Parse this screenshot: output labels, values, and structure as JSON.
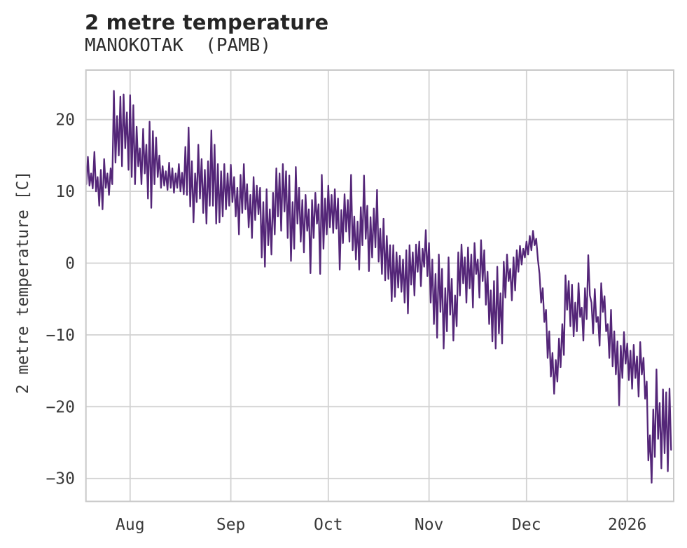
{
  "header": {
    "title": "2 metre temperature",
    "subtitle": "MANOKOTAK  (PAMB)"
  },
  "colors": {
    "line": "#542678",
    "grid": "#d2d2d2",
    "spine": "#c8c8c8",
    "title_text": "#252525",
    "tick_text": "#3a3a3a",
    "background": "#ffffff"
  },
  "chart_data": {
    "type": "line",
    "title": "2 metre temperature",
    "subtitle": "MANOKOTAK  (PAMB)",
    "xlabel": "",
    "ylabel": "2 metre temperature [C]",
    "grid": true,
    "legend": false,
    "xlim": [
      0.4,
      181.3
    ],
    "ylim": [
      -33.2,
      26.9
    ],
    "x_ticks": [
      {
        "day": 14,
        "label": "Aug"
      },
      {
        "day": 45,
        "label": "Sep"
      },
      {
        "day": 75,
        "label": "Oct"
      },
      {
        "day": 106,
        "label": "Nov"
      },
      {
        "day": 136,
        "label": "Dec"
      },
      {
        "day": 167,
        "label": "2026"
      }
    ],
    "y_ticks": [
      {
        "value": 20,
        "label": "20"
      },
      {
        "value": 10,
        "label": "10"
      },
      {
        "value": 0,
        "label": "0"
      },
      {
        "value": -10,
        "label": "−10"
      },
      {
        "value": -20,
        "label": "−20"
      },
      {
        "value": -30,
        "label": "−30"
      }
    ],
    "x0_day": 0,
    "dx_days": 0.5,
    "series": [
      {
        "name": "2 metre temperature",
        "color": "#542678",
        "temps": [
          13.5,
          11.0,
          14.8,
          10.8,
          12.5,
          10.4,
          15.5,
          10.0,
          12.0,
          8.0,
          13.0,
          7.5,
          14.5,
          10.5,
          12.5,
          9.5,
          13.2,
          11.0,
          24.0,
          14.0,
          20.5,
          15.0,
          23.2,
          13.5,
          23.5,
          16.0,
          21.0,
          13.0,
          23.4,
          12.0,
          22.0,
          11.0,
          19.0,
          13.5,
          16.0,
          11.0,
          18.7,
          12.5,
          16.5,
          9.0,
          19.7,
          7.7,
          18.4,
          11.0,
          17.5,
          12.0,
          15.0,
          10.5,
          13.5,
          10.8,
          12.8,
          10.2,
          14.0,
          10.5,
          13.2,
          9.8,
          12.5,
          10.5,
          13.8,
          10.0,
          12.6,
          9.6,
          16.2,
          9.5,
          18.9,
          7.9,
          14.2,
          5.7,
          12.5,
          8.5,
          16.5,
          9.0,
          14.5,
          7.0,
          13.0,
          5.5,
          14.2,
          8.0,
          18.5,
          8.0,
          16.5,
          5.5,
          13.8,
          5.7,
          12.8,
          6.5,
          13.8,
          7.5,
          12.5,
          8.0,
          13.7,
          8.5,
          12.0,
          6.5,
          10.5,
          4.0,
          12.3,
          7.0,
          13.8,
          7.5,
          11.0,
          5.0,
          9.5,
          3.5,
          12.0,
          6.0,
          10.8,
          6.8,
          10.5,
          0.8,
          8.5,
          -0.5,
          10.3,
          2.5,
          7.5,
          1.2,
          9.8,
          4.0,
          13.2,
          6.5,
          12.5,
          4.5,
          13.8,
          7.2,
          12.8,
          3.5,
          12.2,
          0.3,
          8.5,
          2.0,
          13.4,
          5.5,
          10.5,
          3.0,
          8.8,
          1.5,
          9.5,
          4.5,
          7.5,
          -1.4,
          8.8,
          3.5,
          9.8,
          5.5,
          8.2,
          -1.5,
          12.3,
          2.0,
          9.0,
          4.0,
          10.8,
          5.0,
          9.5,
          4.2,
          10.3,
          4.8,
          9.0,
          -0.9,
          7.4,
          2.8,
          9.6,
          4.4,
          8.8,
          3.0,
          12.3,
          1.8,
          6.5,
          0.5,
          5.8,
          -0.9,
          7.8,
          2.5,
          12.2,
          3.4,
          8.0,
          -1.1,
          6.4,
          0.8,
          7.6,
          2.2,
          10.2,
          0.2,
          4.8,
          -1.5,
          6.2,
          -2.4,
          3.8,
          -2.2,
          2.5,
          -5.3,
          2.5,
          -4.7,
          1.5,
          -3.4,
          1.0,
          -4.0,
          0.5,
          -5.5,
          1.8,
          -7.0,
          2.5,
          -3.0,
          1.5,
          -4.5,
          2.6,
          -1.2,
          3.0,
          -3.2,
          2.0,
          -0.5,
          4.6,
          -1.8,
          2.8,
          -5.5,
          0.5,
          -8.5,
          -1.5,
          -10.4,
          1.2,
          -6.8,
          -0.8,
          -11.9,
          -3.5,
          -9.5,
          0.8,
          -7.2,
          -2.2,
          -10.8,
          -4.5,
          -8.8,
          1.5,
          -4.5,
          2.6,
          -2.8,
          0.8,
          -5.5,
          2.2,
          -3.5,
          1.2,
          -6.2,
          2.8,
          -1.5,
          0.5,
          -4.8,
          3.2,
          -2.5,
          1.8,
          -5.8,
          -1.2,
          -8.5,
          -3.8,
          -10.9,
          -2.5,
          -11.9,
          -0.5,
          -9.8,
          -4.2,
          -11.2,
          0.2,
          -4.8,
          1.2,
          -2.5,
          -0.8,
          -5.2,
          0.8,
          -3.8,
          1.8,
          -1.2,
          2.4,
          -0.2,
          2.0,
          0.8,
          3.0,
          1.2,
          3.8,
          1.8,
          4.5,
          2.5,
          3.4,
          0.5,
          -1.5,
          -5.5,
          -3.5,
          -8.2,
          -6.5,
          -13.2,
          -9.5,
          -15.8,
          -12.5,
          -18.2,
          -13.5,
          -16.5,
          -10.5,
          -14.5,
          -8.5,
          -12.8,
          -1.7,
          -6.5,
          -2.5,
          -8.8,
          -3.0,
          -10.2,
          -5.5,
          -9.5,
          -2.8,
          -7.5,
          -6.2,
          -10.8,
          -3.5,
          -7.8,
          1.1,
          -4.5,
          -5.5,
          -9.8,
          -3.6,
          -8.2,
          -7.5,
          -11.5,
          -2.8,
          -6.8,
          -4.6,
          -9.5,
          -8.5,
          -13.2,
          -6.5,
          -14.4,
          -9.5,
          -15.5,
          -10.9,
          -19.8,
          -11.5,
          -16.0,
          -9.6,
          -14.0,
          -11.2,
          -16.3,
          -12.2,
          -17.5,
          -11.4,
          -16.0,
          -13.0,
          -18.6,
          -11.0,
          -15.5,
          -13.2,
          -18.9,
          -16.5,
          -27.5,
          -24.0,
          -30.6,
          -20.4,
          -27.0,
          -14.8,
          -24.5,
          -19.5,
          -28.6,
          -17.6,
          -26.5,
          -18.0,
          -29.0,
          -17.5,
          -26.0
        ]
      }
    ]
  }
}
